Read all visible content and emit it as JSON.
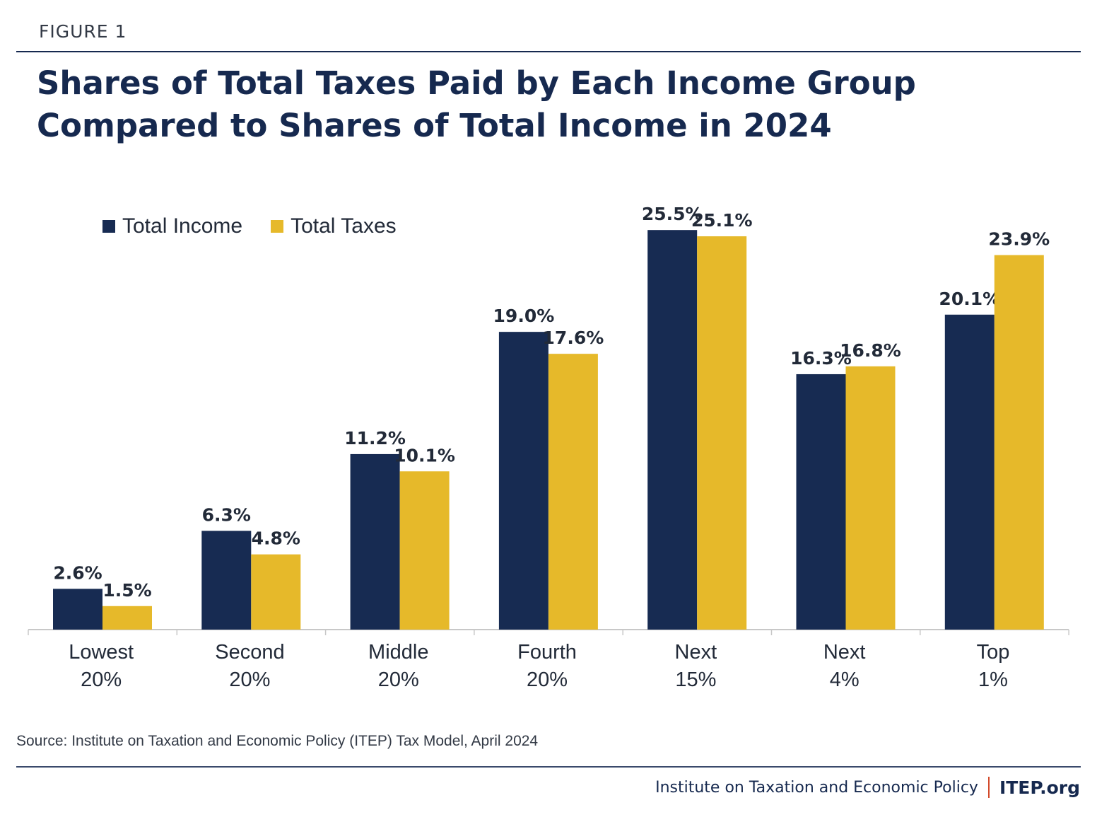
{
  "figure_label": "FIGURE 1",
  "title_lines": [
    "Shares of Total Taxes Paid by Each Income Group",
    "Compared to Shares of Total Income in 2024"
  ],
  "colors": {
    "income": "#172b52",
    "taxes": "#e6b92a",
    "axis": "#c8c8c8",
    "text_dark": "#16294f"
  },
  "chart_data": {
    "type": "bar",
    "title": "Shares of Total Taxes Paid by Each Income Group Compared to Shares of Total Income in 2024",
    "categories": [
      [
        "Lowest",
        "20%"
      ],
      [
        "Second",
        "20%"
      ],
      [
        "Middle",
        "20%"
      ],
      [
        "Fourth",
        "20%"
      ],
      [
        "Next",
        "15%"
      ],
      [
        "Next",
        "4%"
      ],
      [
        "Top",
        "1%"
      ]
    ],
    "series": [
      {
        "name": "Total Income",
        "values": [
          2.6,
          6.3,
          11.2,
          19.0,
          25.5,
          16.3,
          20.1
        ],
        "labels": [
          "2.6%",
          "6.3%",
          "11.2%",
          "19.0%",
          "25.5%",
          "16.3%",
          "20.1%"
        ]
      },
      {
        "name": "Total Taxes",
        "values": [
          1.5,
          4.8,
          10.1,
          17.6,
          25.1,
          16.8,
          23.9
        ],
        "labels": [
          "1.5%",
          "4.8%",
          "10.1%",
          "17.6%",
          "25.1%",
          "16.8%",
          "23.9%"
        ]
      }
    ],
    "ylim": [
      0,
      25.5
    ],
    "xlabel": "",
    "ylabel": "",
    "legend": "top-left",
    "grid": false
  },
  "source": "Source: Institute on Taxation and Economic Policy (ITEP) Tax Model, April 2024",
  "footer": {
    "org_name": "Institute on Taxation and Economic Policy",
    "site": "ITEP.org"
  }
}
